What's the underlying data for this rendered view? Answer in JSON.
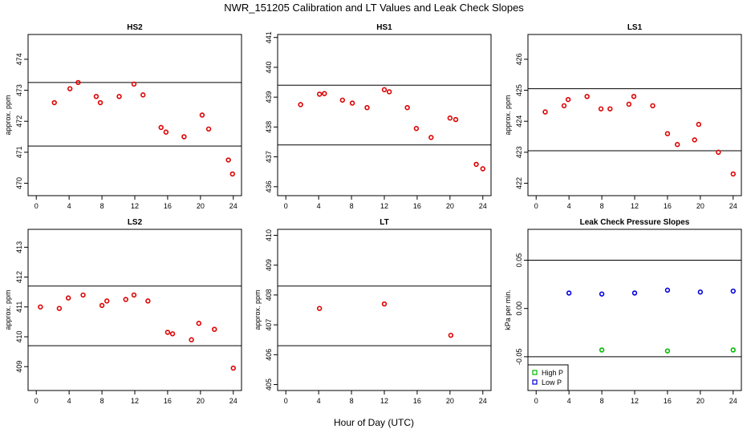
{
  "figure": {
    "title": "NWR_151205  Calibration and LT Values and Leak Check Slopes",
    "xlabel": "Hour of Day (UTC)"
  },
  "chart_data": [
    {
      "type": "scatter",
      "title": "HS2",
      "ylabel": "approx. ppm",
      "xlim": [
        -1,
        25
      ],
      "ylim": [
        469.6,
        474.8
      ],
      "xticks": [
        0,
        4,
        8,
        12,
        16,
        20,
        24
      ],
      "yticks": [
        470,
        471,
        472,
        473,
        474
      ],
      "hlines": [
        473.25,
        471.2
      ],
      "color": "#dd0000",
      "x": [
        2.2,
        4.1,
        5.1,
        7.3,
        7.8,
        10.1,
        11.9,
        13.0,
        15.2,
        15.8,
        18.0,
        20.2,
        21.0,
        23.4,
        23.9
      ],
      "y": [
        472.6,
        473.05,
        473.25,
        472.8,
        472.6,
        472.8,
        473.2,
        472.85,
        471.8,
        471.65,
        471.5,
        472.2,
        471.75,
        470.75,
        470.3
      ]
    },
    {
      "type": "scatter",
      "title": "HS1",
      "ylabel": "",
      "xlim": [
        -1,
        25
      ],
      "ylim": [
        435.7,
        441.1
      ],
      "xticks": [
        0,
        4,
        8,
        12,
        16,
        20,
        24
      ],
      "yticks": [
        436,
        437,
        438,
        439,
        440,
        441
      ],
      "hlines": [
        439.4,
        437.4
      ],
      "color": "#dd0000",
      "x": [
        1.8,
        4.1,
        4.7,
        6.9,
        8.1,
        9.9,
        12.0,
        12.6,
        14.8,
        15.9,
        17.7,
        20.0,
        20.7,
        23.2,
        24.0
      ],
      "y": [
        438.75,
        439.1,
        439.12,
        438.9,
        438.8,
        438.65,
        439.25,
        439.18,
        438.65,
        437.95,
        437.65,
        438.3,
        438.25,
        436.75,
        436.6
      ]
    },
    {
      "type": "scatter",
      "title": "LS1",
      "ylabel": "approx. ppm",
      "xlim": [
        -1,
        25
      ],
      "ylim": [
        421.6,
        426.8
      ],
      "xticks": [
        0,
        4,
        8,
        12,
        16,
        20,
        24
      ],
      "yticks": [
        422,
        423,
        424,
        425,
        426
      ],
      "hlines": [
        425.05,
        423.05
      ],
      "color": "#dd0000",
      "x": [
        1.1,
        3.4,
        3.9,
        6.2,
        7.9,
        9.0,
        11.3,
        11.9,
        14.2,
        16.0,
        17.2,
        19.3,
        19.8,
        22.2,
        24.0
      ],
      "y": [
        424.3,
        424.5,
        424.7,
        424.8,
        424.4,
        424.4,
        424.55,
        424.8,
        424.5,
        423.6,
        423.25,
        423.4,
        423.9,
        423.0,
        422.3
      ]
    },
    {
      "type": "scatter",
      "title": "LS2",
      "ylabel": "approx. ppm",
      "xlim": [
        -1,
        25
      ],
      "ylim": [
        408.2,
        413.6
      ],
      "xticks": [
        0,
        4,
        8,
        12,
        16,
        20,
        24
      ],
      "yticks": [
        409,
        410,
        411,
        412,
        413
      ],
      "hlines": [
        411.7,
        409.7
      ],
      "color": "#dd0000",
      "x": [
        0.5,
        2.8,
        3.9,
        5.7,
        8.0,
        8.6,
        10.9,
        11.9,
        13.6,
        16.0,
        16.6,
        18.9,
        19.8,
        21.7,
        24.0
      ],
      "y": [
        411.0,
        410.95,
        411.3,
        411.4,
        411.05,
        411.2,
        411.25,
        411.4,
        411.2,
        410.15,
        410.1,
        409.9,
        410.45,
        410.25,
        408.95
      ]
    },
    {
      "type": "scatter",
      "title": "LT",
      "ylabel": "approx. ppm",
      "xlim": [
        -1,
        25
      ],
      "ylim": [
        404.8,
        410.2
      ],
      "xticks": [
        0,
        4,
        8,
        12,
        16,
        20,
        24
      ],
      "yticks": [
        405,
        406,
        407,
        408,
        409,
        410
      ],
      "hlines": [
        408.3,
        406.3
      ],
      "color": "#dd0000",
      "x": [
        4.1,
        12.0,
        20.1
      ],
      "y": [
        407.55,
        407.7,
        406.65
      ]
    },
    {
      "type": "scatter",
      "title": "Leak Check Pressure Slopes",
      "ylabel": "kPa per min.",
      "xlim": [
        -1,
        25
      ],
      "ylim": [
        -0.085,
        0.082
      ],
      "xticks": [
        0,
        4,
        8,
        12,
        16,
        20,
        24
      ],
      "yticks": [
        -0.05,
        0.0,
        0.05
      ],
      "ytick_labels": [
        "-0.05",
        "0.00",
        "0.05"
      ],
      "hlines": [
        0.05,
        -0.05
      ],
      "legend_position": "bottom-left",
      "series": [
        {
          "name": "High P",
          "color": "#00bb00",
          "x": [
            8.0,
            16.0,
            24.0
          ],
          "y": [
            -0.043,
            -0.044,
            -0.043
          ]
        },
        {
          "name": "Low P",
          "color": "#0000dd",
          "x": [
            4.0,
            8.0,
            12.0,
            16.0,
            20.0,
            24.0
          ],
          "y": [
            0.016,
            0.015,
            0.016,
            0.019,
            0.017,
            0.018
          ]
        }
      ]
    }
  ]
}
